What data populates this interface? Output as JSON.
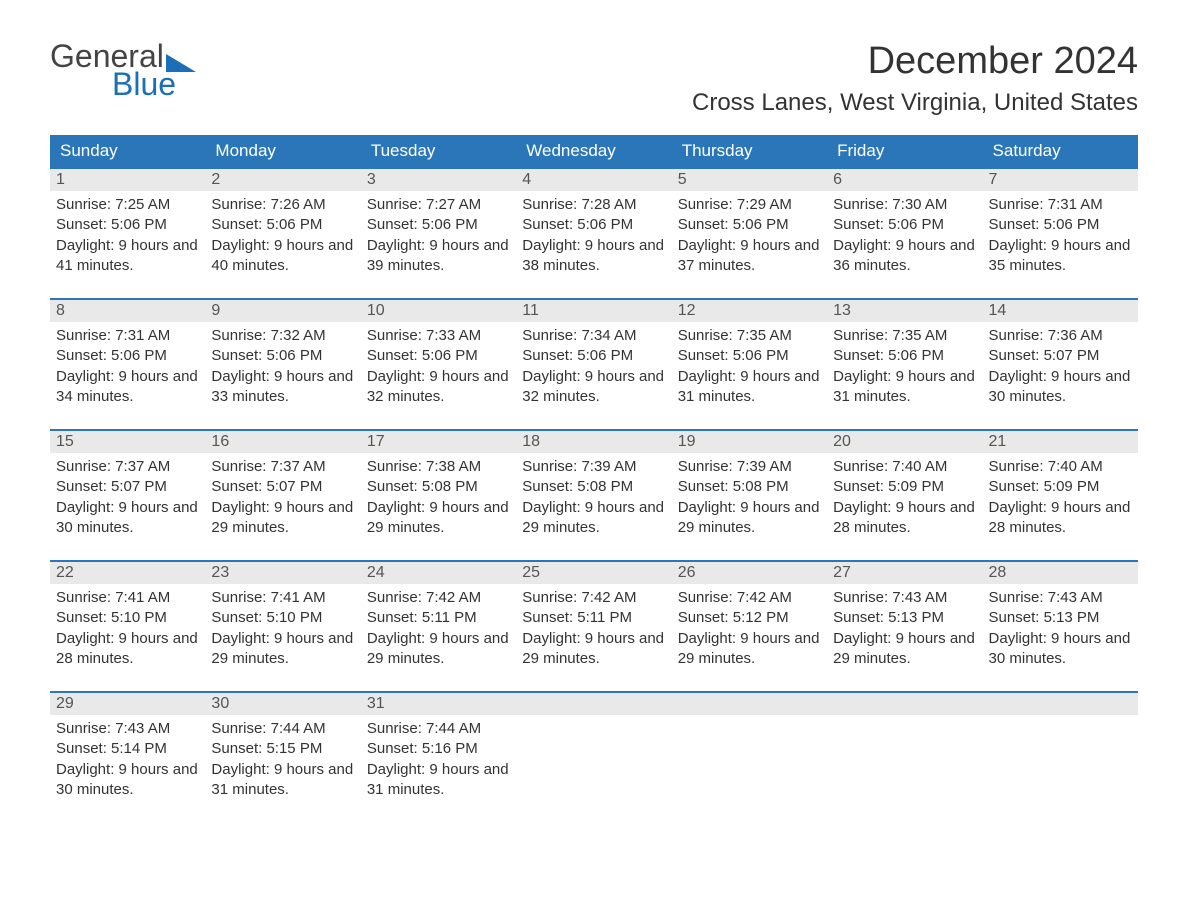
{
  "logo": {
    "text_top": "General",
    "text_bottom": "Blue",
    "color_top": "#444444",
    "color_bottom": "#1b6fb8",
    "shape_color": "#1b6fb8"
  },
  "title": {
    "month": "December 2024",
    "location": "Cross Lanes, West Virginia, United States",
    "month_fontsize": 38,
    "location_fontsize": 24,
    "text_color": "#333333"
  },
  "calendar": {
    "header_bg": "#2a76b9",
    "header_text_color": "#ffffff",
    "week_border_color": "#2a76b9",
    "daynum_bg": "#e9e9e9",
    "daynum_color": "#555555",
    "body_text_color": "#333333",
    "background": "#ffffff",
    "days_of_week": [
      "Sunday",
      "Monday",
      "Tuesday",
      "Wednesday",
      "Thursday",
      "Friday",
      "Saturday"
    ],
    "labels": {
      "sunrise": "Sunrise",
      "sunset": "Sunset",
      "daylight": "Daylight"
    },
    "days": [
      {
        "n": 1,
        "sunrise": "7:25 AM",
        "sunset": "5:06 PM",
        "dl_h": 9,
        "dl_m": 41
      },
      {
        "n": 2,
        "sunrise": "7:26 AM",
        "sunset": "5:06 PM",
        "dl_h": 9,
        "dl_m": 40
      },
      {
        "n": 3,
        "sunrise": "7:27 AM",
        "sunset": "5:06 PM",
        "dl_h": 9,
        "dl_m": 39
      },
      {
        "n": 4,
        "sunrise": "7:28 AM",
        "sunset": "5:06 PM",
        "dl_h": 9,
        "dl_m": 38
      },
      {
        "n": 5,
        "sunrise": "7:29 AM",
        "sunset": "5:06 PM",
        "dl_h": 9,
        "dl_m": 37
      },
      {
        "n": 6,
        "sunrise": "7:30 AM",
        "sunset": "5:06 PM",
        "dl_h": 9,
        "dl_m": 36
      },
      {
        "n": 7,
        "sunrise": "7:31 AM",
        "sunset": "5:06 PM",
        "dl_h": 9,
        "dl_m": 35
      },
      {
        "n": 8,
        "sunrise": "7:31 AM",
        "sunset": "5:06 PM",
        "dl_h": 9,
        "dl_m": 34
      },
      {
        "n": 9,
        "sunrise": "7:32 AM",
        "sunset": "5:06 PM",
        "dl_h": 9,
        "dl_m": 33
      },
      {
        "n": 10,
        "sunrise": "7:33 AM",
        "sunset": "5:06 PM",
        "dl_h": 9,
        "dl_m": 32
      },
      {
        "n": 11,
        "sunrise": "7:34 AM",
        "sunset": "5:06 PM",
        "dl_h": 9,
        "dl_m": 32
      },
      {
        "n": 12,
        "sunrise": "7:35 AM",
        "sunset": "5:06 PM",
        "dl_h": 9,
        "dl_m": 31
      },
      {
        "n": 13,
        "sunrise": "7:35 AM",
        "sunset": "5:06 PM",
        "dl_h": 9,
        "dl_m": 31
      },
      {
        "n": 14,
        "sunrise": "7:36 AM",
        "sunset": "5:07 PM",
        "dl_h": 9,
        "dl_m": 30
      },
      {
        "n": 15,
        "sunrise": "7:37 AM",
        "sunset": "5:07 PM",
        "dl_h": 9,
        "dl_m": 30
      },
      {
        "n": 16,
        "sunrise": "7:37 AM",
        "sunset": "5:07 PM",
        "dl_h": 9,
        "dl_m": 29
      },
      {
        "n": 17,
        "sunrise": "7:38 AM",
        "sunset": "5:08 PM",
        "dl_h": 9,
        "dl_m": 29
      },
      {
        "n": 18,
        "sunrise": "7:39 AM",
        "sunset": "5:08 PM",
        "dl_h": 9,
        "dl_m": 29
      },
      {
        "n": 19,
        "sunrise": "7:39 AM",
        "sunset": "5:08 PM",
        "dl_h": 9,
        "dl_m": 29
      },
      {
        "n": 20,
        "sunrise": "7:40 AM",
        "sunset": "5:09 PM",
        "dl_h": 9,
        "dl_m": 28
      },
      {
        "n": 21,
        "sunrise": "7:40 AM",
        "sunset": "5:09 PM",
        "dl_h": 9,
        "dl_m": 28
      },
      {
        "n": 22,
        "sunrise": "7:41 AM",
        "sunset": "5:10 PM",
        "dl_h": 9,
        "dl_m": 28
      },
      {
        "n": 23,
        "sunrise": "7:41 AM",
        "sunset": "5:10 PM",
        "dl_h": 9,
        "dl_m": 29
      },
      {
        "n": 24,
        "sunrise": "7:42 AM",
        "sunset": "5:11 PM",
        "dl_h": 9,
        "dl_m": 29
      },
      {
        "n": 25,
        "sunrise": "7:42 AM",
        "sunset": "5:11 PM",
        "dl_h": 9,
        "dl_m": 29
      },
      {
        "n": 26,
        "sunrise": "7:42 AM",
        "sunset": "5:12 PM",
        "dl_h": 9,
        "dl_m": 29
      },
      {
        "n": 27,
        "sunrise": "7:43 AM",
        "sunset": "5:13 PM",
        "dl_h": 9,
        "dl_m": 29
      },
      {
        "n": 28,
        "sunrise": "7:43 AM",
        "sunset": "5:13 PM",
        "dl_h": 9,
        "dl_m": 30
      },
      {
        "n": 29,
        "sunrise": "7:43 AM",
        "sunset": "5:14 PM",
        "dl_h": 9,
        "dl_m": 30
      },
      {
        "n": 30,
        "sunrise": "7:44 AM",
        "sunset": "5:15 PM",
        "dl_h": 9,
        "dl_m": 31
      },
      {
        "n": 31,
        "sunrise": "7:44 AM",
        "sunset": "5:16 PM",
        "dl_h": 9,
        "dl_m": 31
      }
    ],
    "first_day_dow": 0,
    "total_cells": 35
  }
}
